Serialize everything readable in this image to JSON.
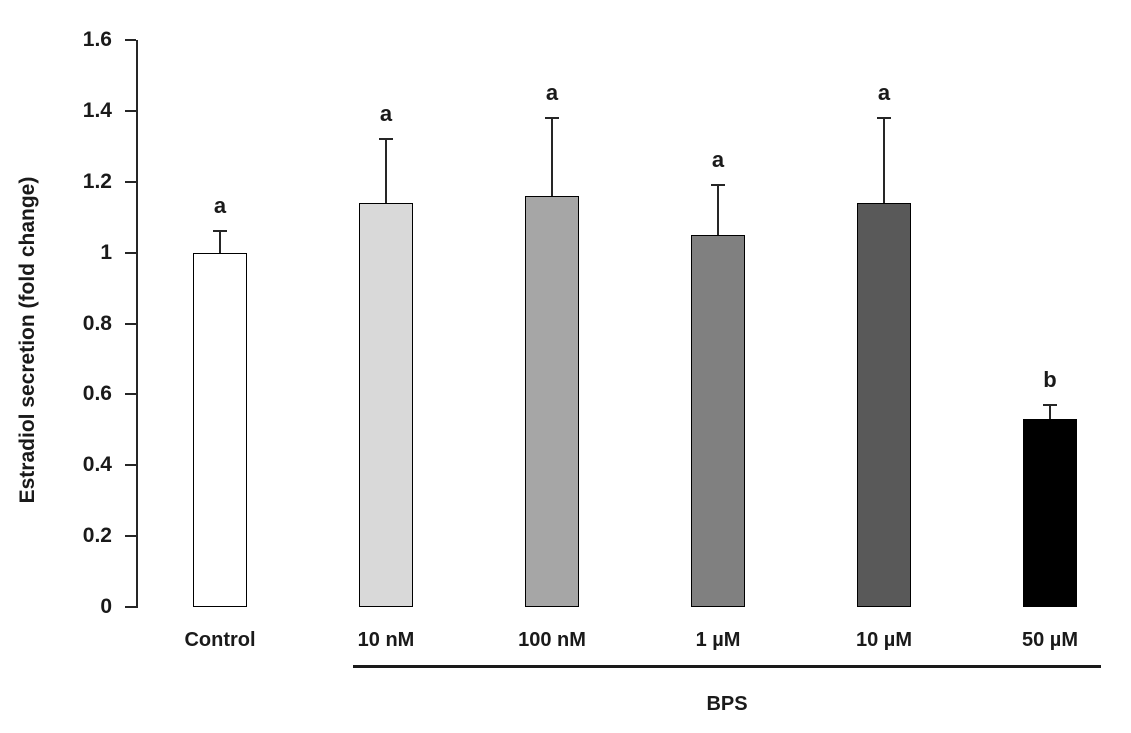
{
  "chart_data": {
    "type": "bar",
    "title": "",
    "xlabel": "",
    "ylabel": "Estradiol secretion (fold change)",
    "categories": [
      "Control",
      "10 nM",
      "100 nM",
      "1 µM",
      "10 µM",
      "50 µM"
    ],
    "values": [
      1.0,
      1.14,
      1.16,
      1.05,
      1.14,
      0.53
    ],
    "error_bars_upper": [
      0.06,
      0.18,
      0.22,
      0.14,
      0.24,
      0.04
    ],
    "significance_letters": [
      "a",
      "a",
      "a",
      "a",
      "a",
      "b"
    ],
    "bar_fill_colors": [
      "#ffffff",
      "#d9d9d9",
      "#a6a6a6",
      "#808080",
      "#595959",
      "#000000"
    ],
    "bar_border_color": "#000000",
    "ylim": [
      0,
      1.6
    ],
    "ytick_step": 0.2,
    "yticks": [
      "0",
      "0.2",
      "0.4",
      "0.6",
      "0.8",
      "1",
      "1.2",
      "1.4",
      "1.6"
    ],
    "grid": false,
    "legend": false,
    "group_annotation": {
      "label": "BPS",
      "categories_spanned": [
        "10 nM",
        "100 nM",
        "1 µM",
        "10 µM",
        "50 µM"
      ]
    }
  }
}
